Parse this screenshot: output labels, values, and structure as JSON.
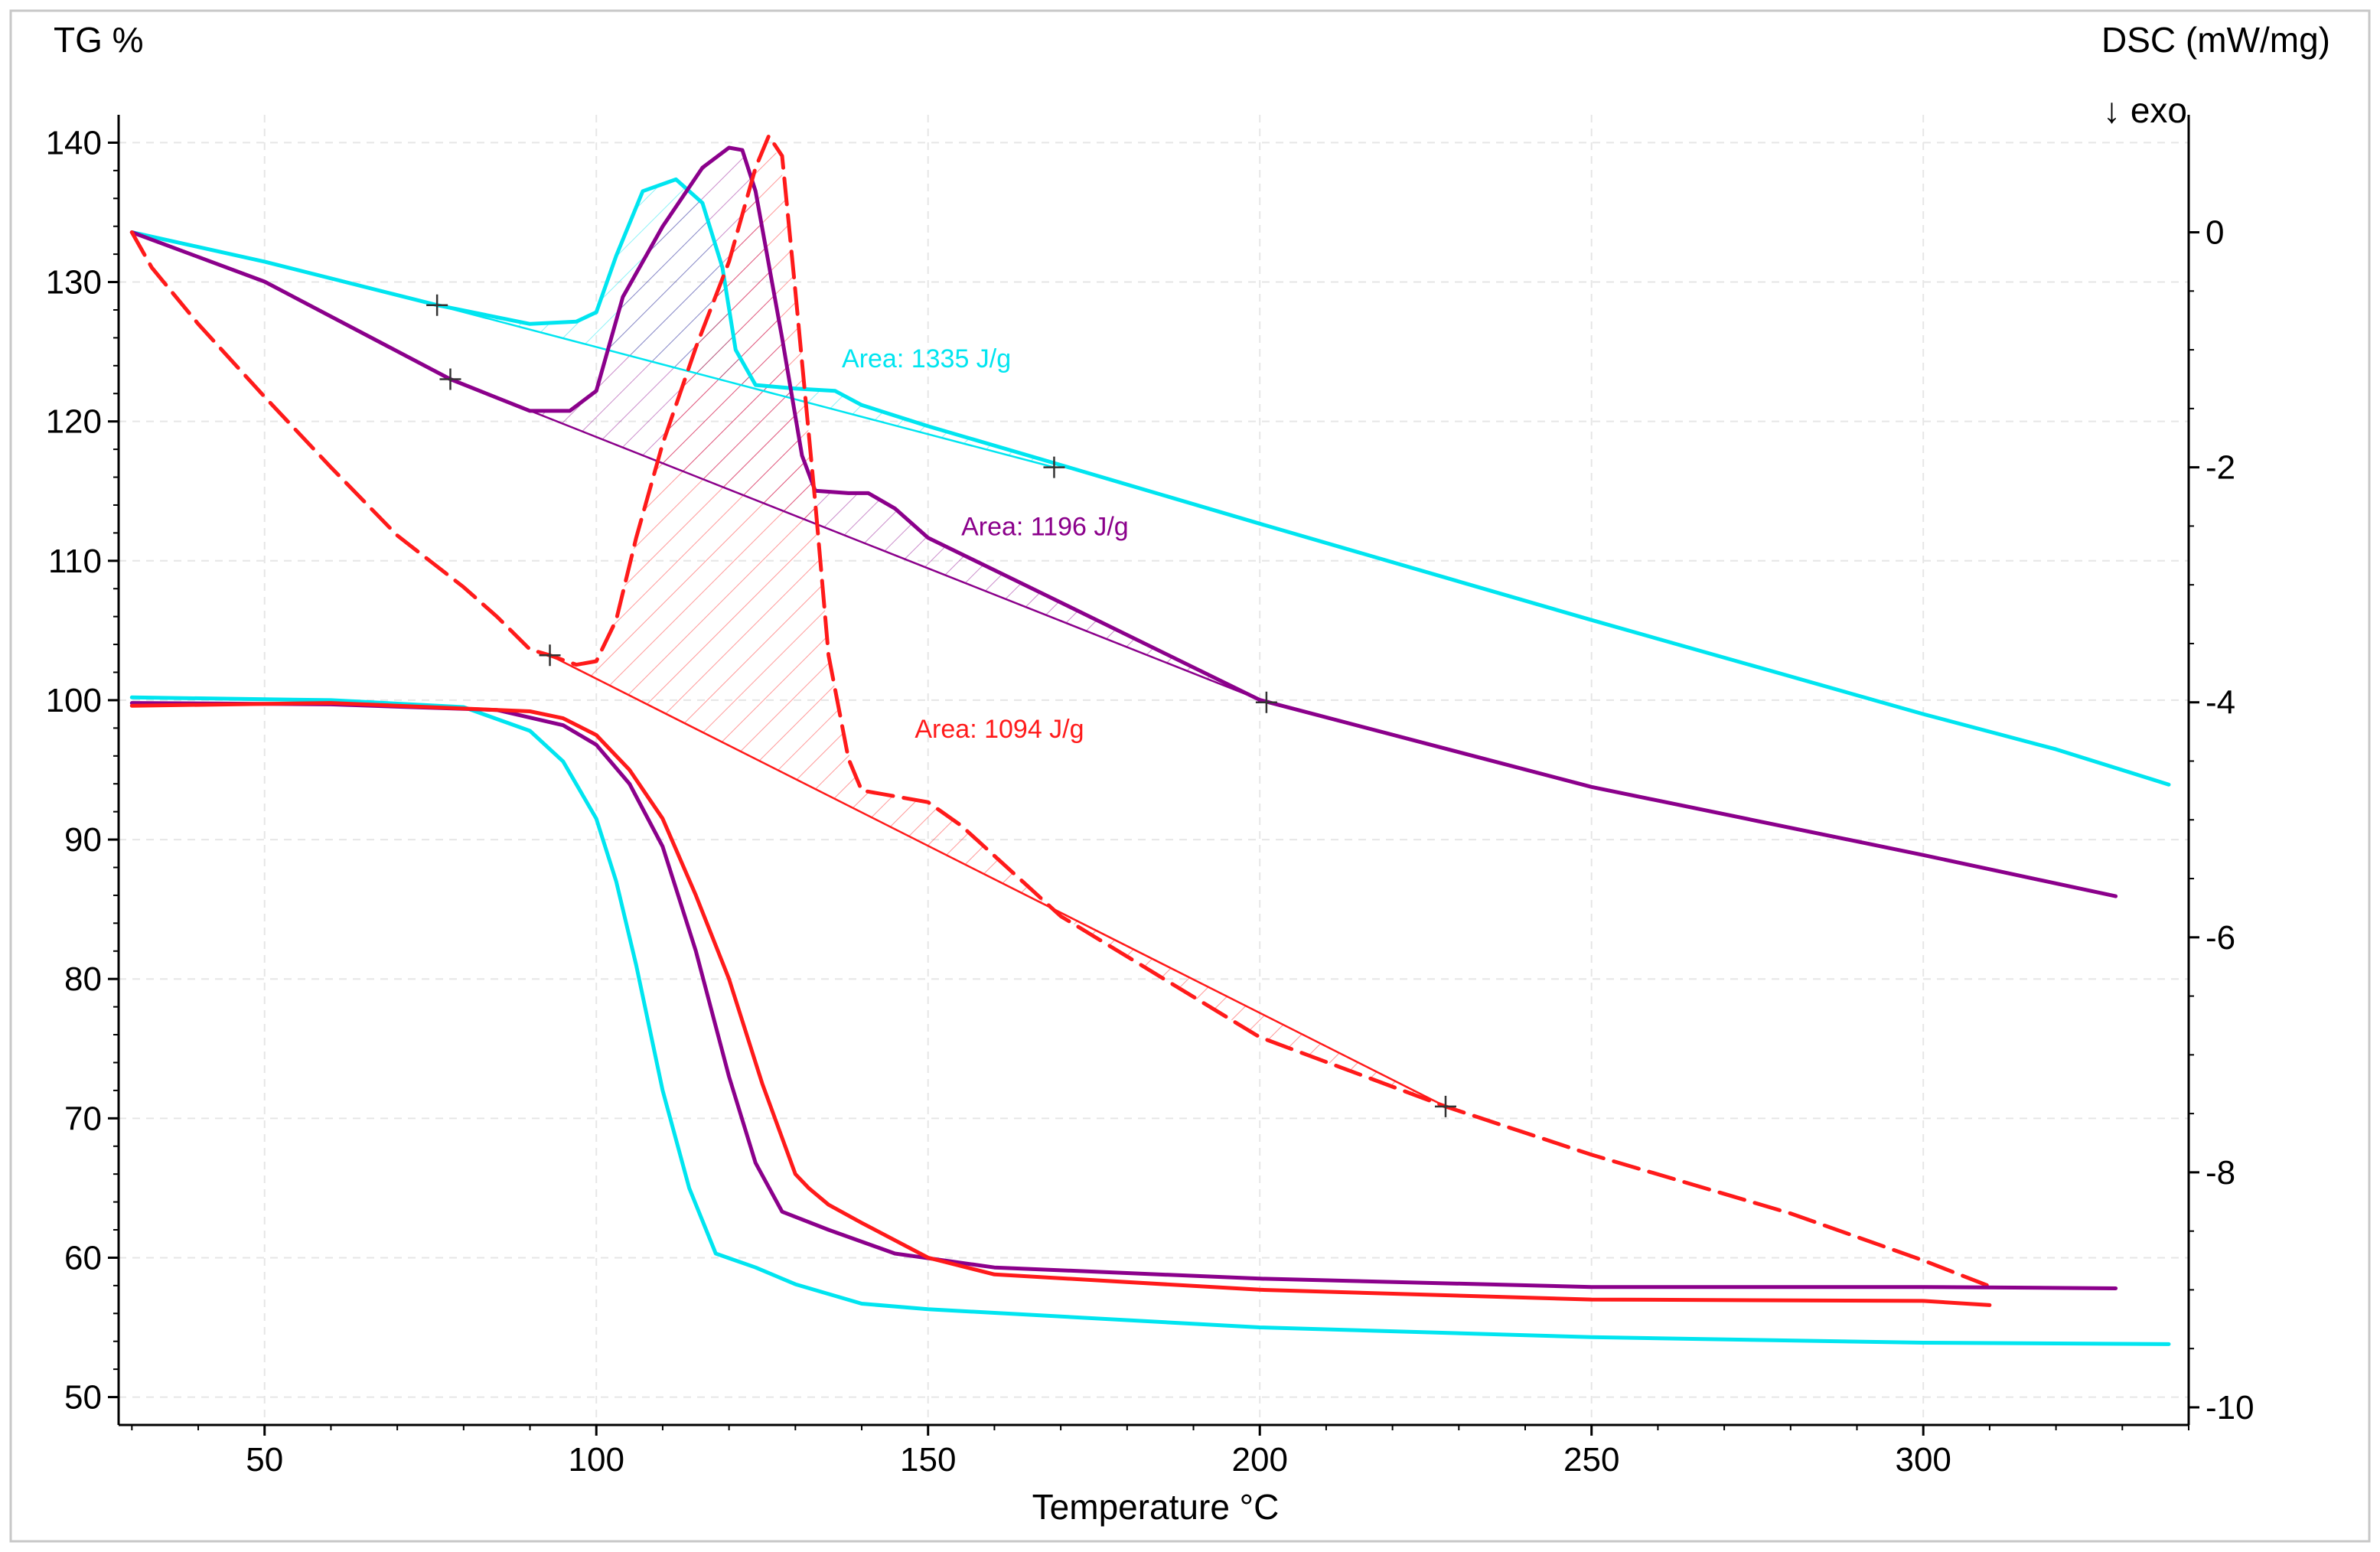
{
  "chart_data": {
    "type": "line",
    "title": "",
    "xlabel": "Temperature °C",
    "ylabel_left": "TG %",
    "ylabel_right": "DSC (mW/mg)",
    "exo_label": "↓ exo",
    "xlim": [
      28,
      340
    ],
    "ylim_left": [
      48,
      142
    ],
    "ylim_right": [
      -10.15,
      1.0
    ],
    "x_ticks": [
      50,
      100,
      150,
      200,
      250,
      300
    ],
    "y_left_ticks": [
      50,
      60,
      70,
      80,
      90,
      100,
      110,
      120,
      130,
      140
    ],
    "y_right_ticks": [
      0,
      -2,
      -4,
      -6,
      -8,
      -10
    ],
    "grid": true,
    "colors": {
      "cyan": "#00e5f0",
      "purple": "#8b008b",
      "red": "#ff1a1a"
    },
    "series": [
      {
        "name": "DSC cyan",
        "axis": "right",
        "color": "#00e5f0",
        "dashed": false,
        "x": [
          30,
          50,
          76,
          90,
          97,
          100,
          103,
          107,
          112,
          116,
          119,
          121,
          124,
          130,
          136,
          140,
          150,
          170,
          200,
          250,
          280,
          300,
          320,
          337
        ],
        "y": [
          0.0,
          -0.25,
          -0.62,
          -0.78,
          -0.76,
          -0.68,
          -0.2,
          0.35,
          0.45,
          0.25,
          -0.3,
          -1.0,
          -1.3,
          -1.33,
          -1.35,
          -1.47,
          -1.65,
          -1.98,
          -2.48,
          -3.3,
          -3.78,
          -4.1,
          -4.4,
          -4.7
        ]
      },
      {
        "name": "DSC purple",
        "axis": "right",
        "color": "#8b008b",
        "dashed": false,
        "x": [
          30,
          50,
          78,
          90,
          96,
          100,
          104,
          110,
          116,
          120,
          122,
          124,
          128,
          131,
          133,
          138,
          141,
          145,
          150,
          170,
          200,
          250,
          300,
          329
        ],
        "y": [
          0.0,
          -0.42,
          -1.25,
          -1.52,
          -1.52,
          -1.35,
          -0.55,
          0.05,
          0.55,
          0.72,
          0.7,
          0.35,
          -0.9,
          -1.9,
          -2.2,
          -2.22,
          -2.22,
          -2.35,
          -2.6,
          -3.15,
          -3.98,
          -4.72,
          -5.3,
          -5.65
        ]
      },
      {
        "name": "DSC red (dashed)",
        "axis": "right",
        "color": "#ff1a1a",
        "dashed": true,
        "x": [
          30,
          33,
          40,
          50,
          60,
          70,
          80,
          85,
          90,
          93,
          97,
          100,
          103,
          106,
          110,
          115,
          120,
          124,
          126,
          128,
          130,
          133,
          135,
          138,
          140,
          145,
          150,
          155,
          170,
          200,
          228,
          250,
          280,
          300,
          310
        ],
        "y": [
          0.0,
          -0.3,
          -0.78,
          -1.4,
          -2.0,
          -2.58,
          -3.02,
          -3.27,
          -3.55,
          -3.6,
          -3.68,
          -3.65,
          -3.3,
          -2.6,
          -1.8,
          -0.98,
          -0.25,
          0.55,
          0.82,
          0.65,
          -0.5,
          -2.3,
          -3.6,
          -4.48,
          -4.75,
          -4.8,
          -4.85,
          -5.05,
          -5.82,
          -6.85,
          -7.44,
          -7.85,
          -8.35,
          -8.75,
          -8.97
        ]
      },
      {
        "name": "TG cyan",
        "axis": "left",
        "color": "#00e5f0",
        "dashed": false,
        "x": [
          30,
          60,
          80,
          90,
          95,
          100,
          103,
          106,
          110,
          114,
          118,
          121,
          124,
          130,
          140,
          150,
          200,
          250,
          300,
          337
        ],
        "y": [
          100.2,
          100.0,
          99.5,
          97.8,
          95.6,
          91.5,
          87.0,
          81.0,
          72.0,
          65.0,
          60.3,
          59.8,
          59.3,
          58.1,
          56.7,
          56.3,
          55.0,
          54.3,
          53.9,
          53.8
        ]
      },
      {
        "name": "TG purple",
        "axis": "left",
        "color": "#8b008b",
        "dashed": false,
        "x": [
          30,
          60,
          85,
          95,
          100,
          105,
          110,
          115,
          120,
          124,
          128,
          135,
          145,
          160,
          200,
          250,
          300,
          329
        ],
        "y": [
          99.8,
          99.7,
          99.3,
          98.2,
          96.8,
          94.0,
          89.5,
          82.0,
          73.0,
          66.8,
          63.3,
          62.0,
          60.3,
          59.3,
          58.5,
          57.9,
          57.9,
          57.8
        ]
      },
      {
        "name": "TG red",
        "axis": "left",
        "color": "#ff1a1a",
        "dashed": false,
        "x": [
          30,
          60,
          90,
          95,
          100,
          105,
          110,
          115,
          120,
          125,
          130,
          132,
          135,
          140,
          150,
          160,
          200,
          250,
          300,
          310
        ],
        "y": [
          99.6,
          99.8,
          99.2,
          98.7,
          97.5,
          95.0,
          91.5,
          86.0,
          80.0,
          72.5,
          66.0,
          65.0,
          63.8,
          62.5,
          60.0,
          58.8,
          57.7,
          57.0,
          56.9,
          56.6
        ]
      }
    ],
    "baselines": [
      {
        "color": "#00e5f0",
        "x": [
          76,
          169
        ],
        "y": [
          -0.62,
          -2.0
        ]
      },
      {
        "color": "#8b008b",
        "x": [
          78,
          201
        ],
        "y": [
          -1.25,
          -4.0
        ]
      },
      {
        "color": "#ff1a1a",
        "x": [
          93,
          228
        ],
        "y": [
          -3.6,
          -7.44
        ]
      }
    ],
    "markers": [
      {
        "color": "#333333",
        "x": 76,
        "y": -0.62
      },
      {
        "color": "#333333",
        "x": 169,
        "y": -2.0
      },
      {
        "color": "#333333",
        "x": 78,
        "y": -1.25
      },
      {
        "color": "#333333",
        "x": 201,
        "y": -4.0
      },
      {
        "color": "#333333",
        "x": 93,
        "y": -3.6
      },
      {
        "color": "#333333",
        "x": 228,
        "y": -7.44
      }
    ],
    "annotations": [
      {
        "text": "Area: 1335 J/g",
        "color": "#00e5f0",
        "x": 137,
        "y": -1.15
      },
      {
        "text": "Area: 1196 J/g",
        "color": "#8b008b",
        "x": 155,
        "y": -2.58
      },
      {
        "text": "Area: 1094 J/g",
        "color": "#ff1a1a",
        "x": 148,
        "y": -4.3
      }
    ]
  }
}
